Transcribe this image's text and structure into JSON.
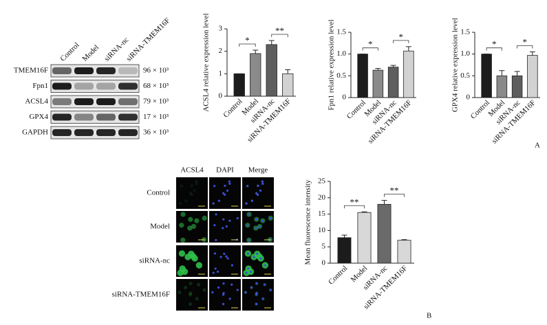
{
  "chart_data": [
    {
      "type": "bar",
      "y_label": "ACSL4 relative expression level",
      "categories": [
        "Control",
        "Model",
        "siRNA-nc",
        "siRNA-TMEM16F"
      ],
      "values": [
        1.0,
        1.9,
        2.3,
        1.0
      ],
      "errors": [
        0,
        0.15,
        0.18,
        0.18
      ],
      "colors": [
        "#1c1c1c",
        "#8a8a8a",
        "#5e5e5e",
        "#d2d2d2"
      ],
      "ylim": [
        0,
        3
      ],
      "yticks": [
        0,
        1,
        2,
        3
      ],
      "annotations": [
        {
          "text": "*",
          "between": [
            "Control",
            "Model"
          ]
        },
        {
          "text": "**",
          "between": [
            "siRNA-nc",
            "siRNA-TMEM16F"
          ]
        }
      ]
    },
    {
      "type": "bar",
      "y_label": "Fpn1 relative expression level",
      "categories": [
        "Control",
        "Model",
        "siRNA-nc",
        "siRNA-TMEM16F"
      ],
      "values": [
        1.0,
        0.63,
        0.7,
        1.07
      ],
      "errors": [
        0,
        0.04,
        0.04,
        0.1
      ],
      "colors": [
        "#1c1c1c",
        "#8a8a8a",
        "#5e5e5e",
        "#d2d2d2"
      ],
      "ylim": [
        0,
        1.5
      ],
      "yticks": [
        0,
        0.5,
        {
          "value": 1,
          "label": "1.0"
        },
        1.5
      ],
      "annotations": [
        {
          "text": "*",
          "between": [
            "Control",
            "Model"
          ]
        },
        {
          "text": "*",
          "between": [
            "siRNA-nc",
            "siRNA-TMEM16F"
          ]
        }
      ]
    },
    {
      "type": "bar",
      "y_label": "GPX4 relative expression level",
      "categories": [
        "Control",
        "Model",
        "siRNA-nc",
        "siRNA-TMEM16F"
      ],
      "values": [
        1.0,
        0.5,
        0.5,
        0.97
      ],
      "errors": [
        0,
        0.12,
        0.1,
        0.08
      ],
      "colors": [
        "#1c1c1c",
        "#8a8a8a",
        "#5e5e5e",
        "#d2d2d2"
      ],
      "ylim": [
        0,
        1.5
      ],
      "yticks": [
        0,
        0.5,
        {
          "value": 1,
          "label": "1.0"
        },
        1.5
      ],
      "annotations": [
        {
          "text": "*",
          "between": [
            "Control",
            "Model"
          ]
        },
        {
          "text": "*",
          "between": [
            "siRNA-nc",
            "siRNA-TMEM16F"
          ]
        }
      ]
    },
    {
      "type": "bar",
      "y_label": "Mean fluorescence intensity",
      "categories": [
        "Control",
        "Model",
        "siRNA-nc",
        "siRNA-TMEM16F"
      ],
      "values": [
        7.8,
        15.5,
        18,
        7
      ],
      "errors": [
        0.8,
        0.2,
        1.2,
        0.2
      ],
      "colors": [
        "#1c1c1c",
        "#d8d8d8",
        "#6a6a6a",
        "#d8d8d8"
      ],
      "ylim": [
        0,
        25
      ],
      "yticks": [
        0,
        5,
        10,
        15,
        20,
        25
      ],
      "annotations": [
        {
          "text": "**",
          "between": [
            "Control",
            "Model"
          ]
        },
        {
          "text": "**",
          "between": [
            "siRNA-nc",
            "siRNA-TMEM16F"
          ]
        }
      ]
    }
  ],
  "western_blot": {
    "lanes": [
      "Control",
      "Model",
      "siRNA-nc",
      "siRNA-TMEM16F"
    ],
    "rows": [
      {
        "protein": "TMEM16F",
        "mw": "96 × 10³"
      },
      {
        "protein": "Fpn1",
        "mw": "68 × 10³"
      },
      {
        "protein": "ACSL4",
        "mw": "79 × 10³"
      },
      {
        "protein": "GPX4",
        "mw": "17 × 10³"
      },
      {
        "protein": "GAPDH",
        "mw": "36 × 10³"
      }
    ]
  },
  "immunofluorescence": {
    "channels": [
      "ACSL4",
      "DAPI",
      "Merge"
    ],
    "groups": [
      "Control",
      "Model",
      "siRNA-nc",
      "siRNA-TMEM16F"
    ]
  },
  "panel_labels": [
    "A",
    "B"
  ]
}
